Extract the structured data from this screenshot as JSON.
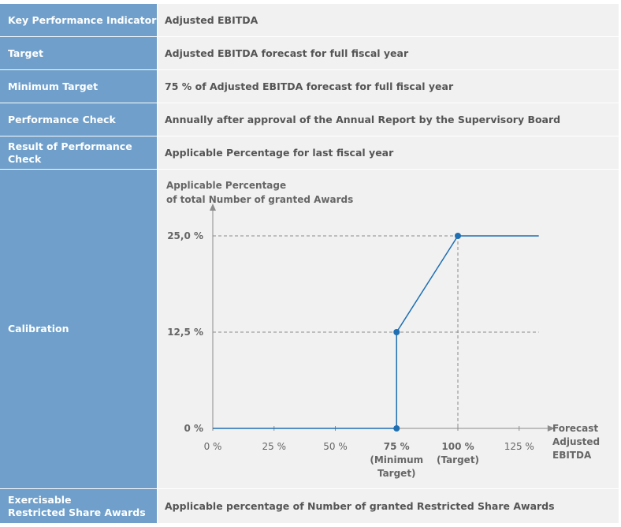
{
  "rows": [
    {
      "label": "Key Performance Indicator",
      "value": "Adjusted EBITDA"
    },
    {
      "label": "Target",
      "value": "Adjusted EBITDA forecast for full fiscal year"
    },
    {
      "label": "Minimum Target",
      "value": "75 % of Adjusted EBITDA forecast for full fiscal year"
    },
    {
      "label": "Performance Check",
      "value": "Annually after approval of the Annual Report by the Supervisory Board"
    },
    {
      "label": "Result of Performance Check",
      "value": "Applicable Percentage for last fiscal year"
    }
  ],
  "calibration": {
    "label": "Calibration"
  },
  "exercisable": {
    "label_line1": "Exercisable",
    "label_line2": "Restricted Share Awards",
    "value": "Applicable percentage of Number of granted Restricted Share Awards"
  },
  "chart_data": {
    "type": "line",
    "ylabel_line1": "Applicable Percentage",
    "ylabel_line2": "of total Number of granted Awards",
    "xlabel_lines": [
      "Forecast",
      "Adjusted",
      "EBITDA"
    ],
    "x_ticks": [
      {
        "value": 0,
        "label": "0 %"
      },
      {
        "value": 25,
        "label": "25 %"
      },
      {
        "value": 50,
        "label": "50 %"
      },
      {
        "value": 75,
        "label": "75 %",
        "sub": [
          "(Minimum",
          "Target)"
        ],
        "bold": true
      },
      {
        "value": 100,
        "label": "100 %",
        "sub": [
          "(Target)"
        ],
        "bold": true
      },
      {
        "value": 125,
        "label": "125 %"
      }
    ],
    "y_ticks": [
      {
        "value": 0,
        "label": "0 %"
      },
      {
        "value": 12.5,
        "label": "12,5 %"
      },
      {
        "value": 25,
        "label": "25,0 %"
      }
    ],
    "xlim": [
      0,
      135
    ],
    "ylim": [
      0,
      25
    ],
    "series": [
      {
        "points": [
          [
            0,
            0
          ],
          [
            75,
            0
          ],
          [
            75,
            12.5
          ],
          [
            100,
            25
          ],
          [
            133,
            25
          ]
        ]
      }
    ],
    "markers": [
      [
        75,
        0
      ],
      [
        75,
        12.5
      ],
      [
        100,
        25
      ]
    ],
    "guides": [
      [
        75,
        12.5
      ],
      [
        100,
        25
      ]
    ],
    "colors": {
      "line": "#1f6fb2",
      "axis": "#8c8c8c",
      "guide": "#8c8c8c",
      "text": "#666666"
    }
  }
}
